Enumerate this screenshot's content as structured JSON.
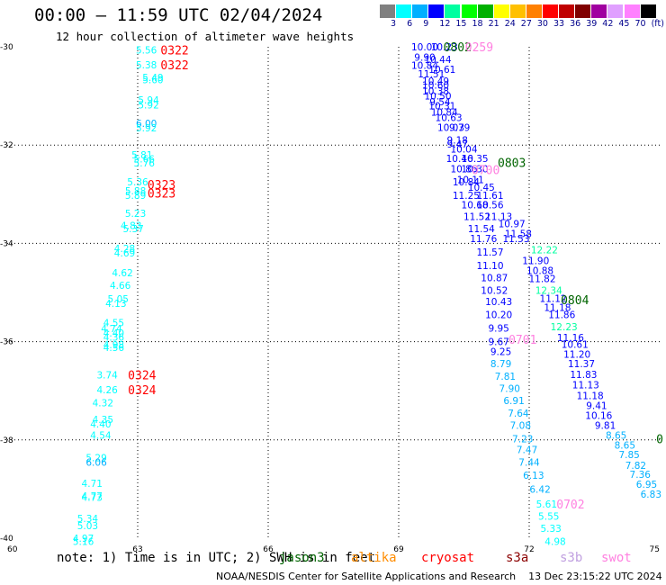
{
  "header": {
    "title": "00:00 – 11:59 UTC 02/04/2024",
    "subtitle": "12 hour collection of altimeter wave heights"
  },
  "legend": {
    "colors": [
      "#808080",
      "#00ffff",
      "#00b0ff",
      "#0000ff",
      "#00ffa0",
      "#00ff00",
      "#00b000",
      "#ffff00",
      "#ffc000",
      "#ff8000",
      "#ff0000",
      "#c00000",
      "#800000",
      "#a000a0",
      "#e0a0ff",
      "#ff80ff",
      "#000000"
    ],
    "labels": [
      "3",
      "6",
      "9",
      "12",
      "15",
      "18",
      "21",
      "24",
      "27",
      "30",
      "33",
      "36",
      "39",
      "42",
      "45",
      "70",
      "(ft)"
    ]
  },
  "note": "note: 1) Time is in UTC; 2) SWH is in feet",
  "satellites": [
    {
      "name": "jason3",
      "color": "#006400"
    },
    {
      "name": "altika",
      "color": "#ff8c00"
    },
    {
      "name": "cryosat",
      "color": "#ff0000"
    },
    {
      "name": "s3a",
      "color": "#8b0000"
    },
    {
      "name": "s3b",
      "color": "#c0a0e0"
    },
    {
      "name": "swot",
      "color": "#ff80e0"
    }
  ],
  "footer": "NOAA/NESDIS Center for Satellite Applications and Research    13 Dec 23:15:22 UTC 2024",
  "chart_data": {
    "type": "scatter",
    "xlim": [
      60,
      75
    ],
    "ylim": [
      -40,
      -30
    ],
    "xticks": [
      "60",
      "63",
      "66",
      "69",
      "72",
      "75"
    ],
    "yticks": [
      "-30",
      "-32",
      "-34",
      "-36",
      "-38",
      "-40"
    ],
    "grid": true,
    "units": "ft",
    "points": [
      {
        "x": 63.2,
        "y": -30.06,
        "v": "5.56"
      },
      {
        "x": 63.2,
        "y": -30.37,
        "v": "5.38"
      },
      {
        "x": 63.35,
        "y": -30.62,
        "v": "5.49"
      },
      {
        "x": 63.35,
        "y": -30.67,
        "v": "5.60"
      },
      {
        "x": 63.25,
        "y": -31.08,
        "v": "5.94"
      },
      {
        "x": 63.25,
        "y": -31.18,
        "v": "5.92"
      },
      {
        "x": 63.2,
        "y": -31.56,
        "v": "6.00"
      },
      {
        "x": 63.2,
        "y": -31.65,
        "v": "5.92"
      },
      {
        "x": 63.1,
        "y": -32.2,
        "v": "5.81"
      },
      {
        "x": 63.15,
        "y": -32.28,
        "v": "5.66"
      },
      {
        "x": 63.15,
        "y": -32.36,
        "v": "5.76"
      },
      {
        "x": 63.0,
        "y": -32.75,
        "v": "5.36"
      },
      {
        "x": 62.95,
        "y": -32.93,
        "v": "5.88"
      },
      {
        "x": 62.95,
        "y": -33.02,
        "v": "5.89"
      },
      {
        "x": 62.95,
        "y": -33.39,
        "v": "5.23"
      },
      {
        "x": 62.85,
        "y": -33.64,
        "v": "4.83"
      },
      {
        "x": 62.9,
        "y": -33.7,
        "v": "5.37"
      },
      {
        "x": 62.7,
        "y": -34.1,
        "v": "4.28"
      },
      {
        "x": 62.7,
        "y": -34.19,
        "v": "4.69"
      },
      {
        "x": 62.65,
        "y": -34.6,
        "v": "4.62"
      },
      {
        "x": 62.6,
        "y": -34.85,
        "v": "4.66"
      },
      {
        "x": 62.55,
        "y": -35.13,
        "v": "5.05"
      },
      {
        "x": 62.5,
        "y": -35.22,
        "v": "4.13"
      },
      {
        "x": 62.45,
        "y": -35.61,
        "v": "4.55"
      },
      {
        "x": 62.4,
        "y": -35.73,
        "v": "4.74"
      },
      {
        "x": 62.45,
        "y": -35.82,
        "v": "4.40"
      },
      {
        "x": 62.45,
        "y": -35.91,
        "v": "4.36"
      },
      {
        "x": 62.45,
        "y": -36.06,
        "v": "4.98"
      },
      {
        "x": 62.45,
        "y": -36.12,
        "v": "4.56"
      },
      {
        "x": 62.3,
        "y": -36.68,
        "v": "3.74"
      },
      {
        "x": 62.3,
        "y": -36.98,
        "v": "4.26"
      },
      {
        "x": 62.2,
        "y": -37.24,
        "v": "4.32"
      },
      {
        "x": 62.2,
        "y": -37.58,
        "v": "4.35"
      },
      {
        "x": 62.15,
        "y": -37.67,
        "v": "4.40"
      },
      {
        "x": 62.15,
        "y": -37.9,
        "v": "4.54"
      },
      {
        "x": 62.05,
        "y": -38.36,
        "v": "5.29"
      },
      {
        "x": 62.05,
        "y": -38.45,
        "v": "6.06"
      },
      {
        "x": 61.95,
        "y": -38.88,
        "v": "4.71"
      },
      {
        "x": 61.95,
        "y": -39.14,
        "v": "4.77"
      },
      {
        "x": 61.95,
        "y": -39.17,
        "v": "4.73"
      },
      {
        "x": 61.85,
        "y": -39.6,
        "v": "5.34"
      },
      {
        "x": 61.85,
        "y": -39.74,
        "v": "5.03"
      },
      {
        "x": 61.75,
        "y": -40.0,
        "v": "4.97"
      },
      {
        "x": 61.75,
        "y": -40.06,
        "v": "5.16"
      },
      {
        "x": 69.6,
        "y": -30.0,
        "v": "10.00"
      },
      {
        "x": 70.05,
        "y": -30.0,
        "v": "10.23"
      },
      {
        "x": 69.6,
        "y": -30.21,
        "v": "9.90"
      },
      {
        "x": 69.9,
        "y": -30.26,
        "v": "10.44"
      },
      {
        "x": 69.6,
        "y": -30.38,
        "v": "10.84"
      },
      {
        "x": 70.0,
        "y": -30.46,
        "v": "10.61"
      },
      {
        "x": 69.75,
        "y": -30.55,
        "v": "11.51"
      },
      {
        "x": 69.85,
        "y": -30.7,
        "v": "10.49"
      },
      {
        "x": 69.85,
        "y": -30.78,
        "v": "10.60"
      },
      {
        "x": 69.85,
        "y": -30.9,
        "v": "10.38"
      },
      {
        "x": 69.9,
        "y": -31.0,
        "v": "10.50"
      },
      {
        "x": 69.95,
        "y": -31.12,
        "v": "9.54"
      },
      {
        "x": 70.0,
        "y": -31.2,
        "v": "10.31"
      },
      {
        "x": 70.05,
        "y": -31.33,
        "v": "10.84"
      },
      {
        "x": 70.15,
        "y": -31.44,
        "v": "10.63"
      },
      {
        "x": 70.2,
        "y": -31.64,
        "v": "10.03"
      },
      {
        "x": 70.4,
        "y": -31.64,
        "v": "9.79"
      },
      {
        "x": 70.35,
        "y": -31.9,
        "v": "9.18"
      },
      {
        "x": 70.35,
        "y": -31.98,
        "v": "9.47"
      },
      {
        "x": 70.5,
        "y": -32.08,
        "v": "10.04"
      },
      {
        "x": 70.4,
        "y": -32.27,
        "v": "10.46"
      },
      {
        "x": 70.75,
        "y": -32.27,
        "v": "10.35"
      },
      {
        "x": 70.5,
        "y": -32.48,
        "v": "10.86"
      },
      {
        "x": 70.75,
        "y": -32.48,
        "v": "10.30"
      },
      {
        "x": 70.65,
        "y": -32.7,
        "v": "10.11"
      },
      {
        "x": 70.55,
        "y": -32.75,
        "v": "10.84"
      },
      {
        "x": 70.9,
        "y": -32.86,
        "v": "10.45"
      },
      {
        "x": 70.55,
        "y": -33.02,
        "v": "11.25"
      },
      {
        "x": 71.1,
        "y": -33.02,
        "v": "11.61"
      },
      {
        "x": 70.75,
        "y": -33.21,
        "v": "10.68"
      },
      {
        "x": 71.1,
        "y": -33.21,
        "v": "10.56"
      },
      {
        "x": 70.8,
        "y": -33.45,
        "v": "11.52"
      },
      {
        "x": 71.3,
        "y": -33.45,
        "v": "11.13"
      },
      {
        "x": 71.6,
        "y": -33.6,
        "v": "10.97"
      },
      {
        "x": 70.9,
        "y": -33.7,
        "v": "11.54"
      },
      {
        "x": 71.75,
        "y": -33.8,
        "v": "11.58"
      },
      {
        "x": 70.95,
        "y": -33.9,
        "v": "11.76"
      },
      {
        "x": 71.7,
        "y": -33.9,
        "v": "11.53"
      },
      {
        "x": 71.1,
        "y": -34.18,
        "v": "11.57"
      },
      {
        "x": 71.1,
        "y": -34.45,
        "v": "11.10"
      },
      {
        "x": 72.15,
        "y": -34.35,
        "v": "11.90"
      },
      {
        "x": 71.2,
        "y": -34.7,
        "v": "10.87"
      },
      {
        "x": 72.25,
        "y": -34.55,
        "v": "10.88"
      },
      {
        "x": 72.3,
        "y": -34.72,
        "v": "11.82"
      },
      {
        "x": 71.2,
        "y": -34.95,
        "v": "10.52"
      },
      {
        "x": 72.55,
        "y": -35.12,
        "v": "11.12"
      },
      {
        "x": 71.3,
        "y": -35.18,
        "v": "10.43"
      },
      {
        "x": 72.65,
        "y": -35.3,
        "v": "11.18"
      },
      {
        "x": 71.3,
        "y": -35.45,
        "v": "10.20"
      },
      {
        "x": 72.75,
        "y": -35.45,
        "v": "11.86"
      },
      {
        "x": 71.3,
        "y": -35.72,
        "v": "9.95"
      },
      {
        "x": 71.3,
        "y": -36.0,
        "v": "9.67"
      },
      {
        "x": 72.95,
        "y": -35.92,
        "v": "11.16"
      },
      {
        "x": 73.05,
        "y": -36.05,
        "v": "10.61"
      },
      {
        "x": 71.35,
        "y": -36.2,
        "v": "9.25"
      },
      {
        "x": 73.1,
        "y": -36.25,
        "v": "11.20"
      },
      {
        "x": 73.2,
        "y": -36.45,
        "v": "11.37"
      },
      {
        "x": 73.25,
        "y": -36.67,
        "v": "11.83"
      },
      {
        "x": 73.3,
        "y": -36.88,
        "v": "11.13"
      },
      {
        "x": 73.4,
        "y": -37.1,
        "v": "11.18"
      },
      {
        "x": 73.55,
        "y": -37.3,
        "v": "9.41"
      },
      {
        "x": 73.6,
        "y": -37.5,
        "v": "10.16"
      },
      {
        "x": 73.75,
        "y": -37.7,
        "v": "9.81"
      },
      {
        "x": 74.0,
        "y": -37.9,
        "v": "8.65"
      },
      {
        "x": 74.2,
        "y": -38.1,
        "v": "8.65"
      },
      {
        "x": 74.3,
        "y": -38.3,
        "v": "7.85"
      },
      {
        "x": 74.45,
        "y": -38.52,
        "v": "7.82"
      },
      {
        "x": 74.55,
        "y": -38.7,
        "v": "7.36"
      },
      {
        "x": 74.7,
        "y": -38.9,
        "v": "6.95"
      },
      {
        "x": 74.8,
        "y": -39.1,
        "v": "6.83"
      },
      {
        "x": 71.35,
        "y": -36.45,
        "v": "8.79"
      },
      {
        "x": 71.45,
        "y": -36.7,
        "v": "7.81"
      },
      {
        "x": 71.55,
        "y": -36.95,
        "v": "7.90"
      },
      {
        "x": 71.65,
        "y": -37.2,
        "v": "6.91"
      },
      {
        "x": 71.75,
        "y": -37.45,
        "v": "7.64"
      },
      {
        "x": 71.8,
        "y": -37.7,
        "v": "7.08"
      },
      {
        "x": 71.85,
        "y": -37.98,
        "v": "7.23"
      },
      {
        "x": 71.95,
        "y": -38.2,
        "v": "7.47"
      },
      {
        "x": 72.0,
        "y": -38.45,
        "v": "7.44"
      },
      {
        "x": 72.1,
        "y": -38.72,
        "v": "6.13"
      },
      {
        "x": 72.25,
        "y": -39.0,
        "v": "6.42"
      },
      {
        "x": 72.4,
        "y": -39.3,
        "v": "5.61"
      },
      {
        "x": 72.45,
        "y": -39.55,
        "v": "5.55"
      },
      {
        "x": 72.5,
        "y": -39.8,
        "v": "5.33"
      },
      {
        "x": 72.6,
        "y": -40.06,
        "v": "4.98"
      },
      {
        "x": 72.35,
        "y": -34.13,
        "v": "12.22"
      },
      {
        "x": 72.45,
        "y": -34.95,
        "v": "12.34"
      },
      {
        "x": 72.8,
        "y": -35.7,
        "v": "12.23"
      }
    ],
    "labels": [
      {
        "x": 63.85,
        "y": -30.06,
        "t": "0322",
        "sat": "cryosat"
      },
      {
        "x": 63.85,
        "y": -30.37,
        "t": "0322",
        "sat": "cryosat"
      },
      {
        "x": 63.55,
        "y": -32.8,
        "t": "0323",
        "sat": "cryosat"
      },
      {
        "x": 63.55,
        "y": -32.98,
        "t": "0323",
        "sat": "cryosat"
      },
      {
        "x": 63.1,
        "y": -36.68,
        "t": "0324",
        "sat": "cryosat"
      },
      {
        "x": 63.1,
        "y": -36.98,
        "t": "0324",
        "sat": "cryosat"
      },
      {
        "x": 70.35,
        "y": -30.0,
        "t": "0802",
        "sat": "jason3"
      },
      {
        "x": 70.85,
        "y": -30.0,
        "t": "0259",
        "sat": "swot"
      },
      {
        "x": 71.6,
        "y": -32.35,
        "t": "0803",
        "sat": "jason3"
      },
      {
        "x": 71.0,
        "y": -32.5,
        "t": "0700",
        "sat": "swot"
      },
      {
        "x": 73.05,
        "y": -35.15,
        "t": "0804",
        "sat": "jason3"
      },
      {
        "x": 71.85,
        "y": -35.95,
        "t": "0701",
        "sat": "swot"
      },
      {
        "x": 72.95,
        "y": -39.3,
        "t": "0702",
        "sat": "swot"
      },
      {
        "x": 75.0,
        "y": -37.98,
        "t": "0",
        "sat": "jason3"
      }
    ]
  }
}
